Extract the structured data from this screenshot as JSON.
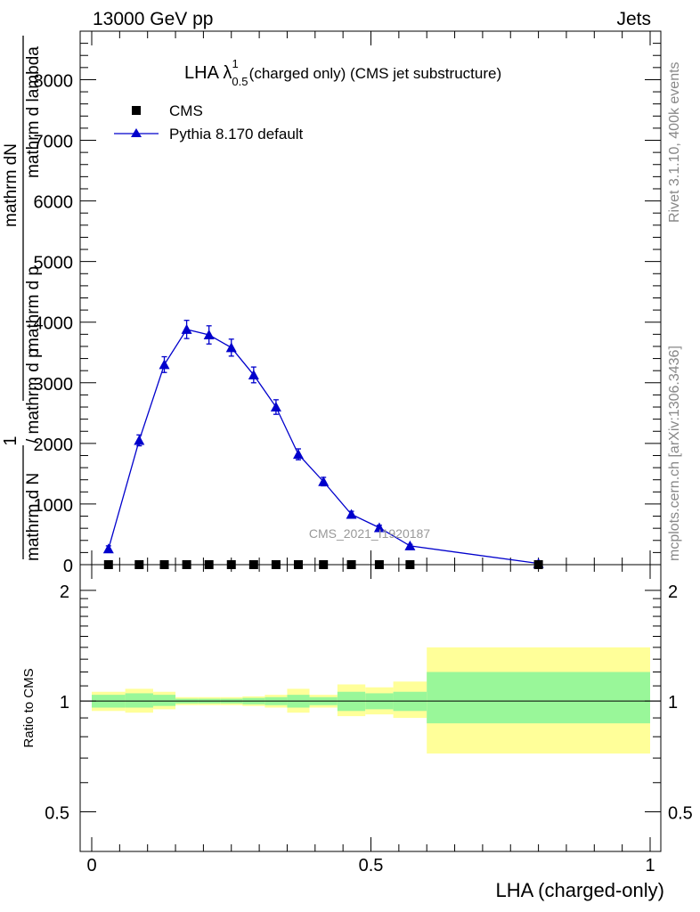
{
  "header": {
    "left": "13000 GeV pp",
    "right": "Jets"
  },
  "side_labels": {
    "rivet": "Rivet 3.1.10,  400k events",
    "mcplots": "mcplots.cern.ch [arXiv:1306.3436]"
  },
  "chart_data": {
    "type": "line",
    "title": {
      "main": "LHA λ",
      "sup": "1",
      "sub": "0.5",
      "rest": "(charged only) (CMS jet substructure)"
    },
    "watermark": "CMS_2021_I1920187",
    "xlabel": "LHA (charged-only)",
    "ylabel": {
      "top_numerator": "mathrm dN",
      "top_denominator": "mathrm d p",
      "top_rest": "mathrm d lambda",
      "lead_numerator": "1",
      "lead_denominator": "mathrm d N",
      "middle": "/ mathrm d p",
      "full_lines": [
        "mathrm d",
        "N",
        "mathrm d p",
        "mathrm d lambda"
      ]
    },
    "xlim": [
      0,
      1
    ],
    "ylim_main": [
      0,
      8800
    ],
    "yticks_main": [
      0,
      1000,
      2000,
      3000,
      4000,
      5000,
      6000,
      7000,
      8000
    ],
    "ytick_labels_main": [
      "0",
      "1000",
      "2000",
      "3000",
      "4000",
      "5000",
      "6000",
      "7000",
      "8000"
    ],
    "xticks": [
      0,
      0.5,
      1
    ],
    "xtick_labels": [
      "0",
      "0.5",
      "1"
    ],
    "legend": {
      "position": "top-left",
      "entries": [
        "CMS",
        "Pythia 8.170 default"
      ]
    },
    "series": [
      {
        "name": "CMS",
        "marker": "square",
        "color": "#000000",
        "x": [
          0.03,
          0.085,
          0.13,
          0.17,
          0.21,
          0.25,
          0.29,
          0.33,
          0.37,
          0.415,
          0.465,
          0.515,
          0.57,
          0.8
        ],
        "y": [
          0,
          0,
          0,
          0,
          0,
          0,
          0,
          0,
          0,
          0,
          0,
          0,
          0,
          0
        ]
      },
      {
        "name": "Pythia 8.170 default",
        "marker": "triangle",
        "color": "#0000cc",
        "x": [
          0.03,
          0.085,
          0.13,
          0.17,
          0.21,
          0.25,
          0.29,
          0.33,
          0.37,
          0.415,
          0.465,
          0.515,
          0.57,
          0.8
        ],
        "y": [
          260,
          2050,
          3300,
          3880,
          3790,
          3580,
          3130,
          2600,
          1820,
          1370,
          830,
          610,
          310,
          20
        ],
        "err": [
          50,
          90,
          130,
          150,
          150,
          140,
          130,
          120,
          90,
          70,
          50,
          40,
          25,
          5
        ]
      }
    ],
    "ratio": {
      "ylabel": "Ratio to CMS",
      "ylim": [
        0.39,
        2.35
      ],
      "yticks": [
        0.5,
        1,
        2
      ],
      "ytick_labels": [
        "0.5",
        "1",
        "2"
      ],
      "bins": [
        {
          "lo": 0.0,
          "hi": 0.06,
          "inner": [
            0.96,
            1.04
          ],
          "outer": [
            0.94,
            1.06
          ]
        },
        {
          "lo": 0.06,
          "hi": 0.11,
          "inner": [
            0.96,
            1.05
          ],
          "outer": [
            0.93,
            1.08
          ]
        },
        {
          "lo": 0.11,
          "hi": 0.15,
          "inner": [
            0.97,
            1.04
          ],
          "outer": [
            0.95,
            1.06
          ]
        },
        {
          "lo": 0.15,
          "hi": 0.19,
          "inner": [
            0.985,
            1.015
          ],
          "outer": [
            0.975,
            1.025
          ]
        },
        {
          "lo": 0.19,
          "hi": 0.23,
          "inner": [
            0.985,
            1.015
          ],
          "outer": [
            0.975,
            1.025
          ]
        },
        {
          "lo": 0.23,
          "hi": 0.27,
          "inner": [
            0.985,
            1.015
          ],
          "outer": [
            0.975,
            1.025
          ]
        },
        {
          "lo": 0.27,
          "hi": 0.31,
          "inner": [
            0.98,
            1.02
          ],
          "outer": [
            0.97,
            1.03
          ]
        },
        {
          "lo": 0.31,
          "hi": 0.35,
          "inner": [
            0.975,
            1.025
          ],
          "outer": [
            0.96,
            1.04
          ]
        },
        {
          "lo": 0.35,
          "hi": 0.39,
          "inner": [
            0.96,
            1.04
          ],
          "outer": [
            0.93,
            1.08
          ]
        },
        {
          "lo": 0.39,
          "hi": 0.44,
          "inner": [
            0.975,
            1.025
          ],
          "outer": [
            0.96,
            1.04
          ]
        },
        {
          "lo": 0.44,
          "hi": 0.49,
          "inner": [
            0.94,
            1.06
          ],
          "outer": [
            0.91,
            1.11
          ]
        },
        {
          "lo": 0.49,
          "hi": 0.54,
          "inner": [
            0.95,
            1.05
          ],
          "outer": [
            0.92,
            1.09
          ]
        },
        {
          "lo": 0.54,
          "hi": 0.6,
          "inner": [
            0.94,
            1.06
          ],
          "outer": [
            0.9,
            1.13
          ]
        },
        {
          "lo": 0.6,
          "hi": 1.0,
          "inner": [
            0.87,
            1.2
          ],
          "outer": [
            0.72,
            1.4
          ]
        }
      ]
    }
  },
  "colors": {
    "mc": "#0000cc",
    "data": "#000000",
    "band_inner": "#99f799",
    "band_outer": "#ffff99",
    "side_text": "#888888"
  }
}
